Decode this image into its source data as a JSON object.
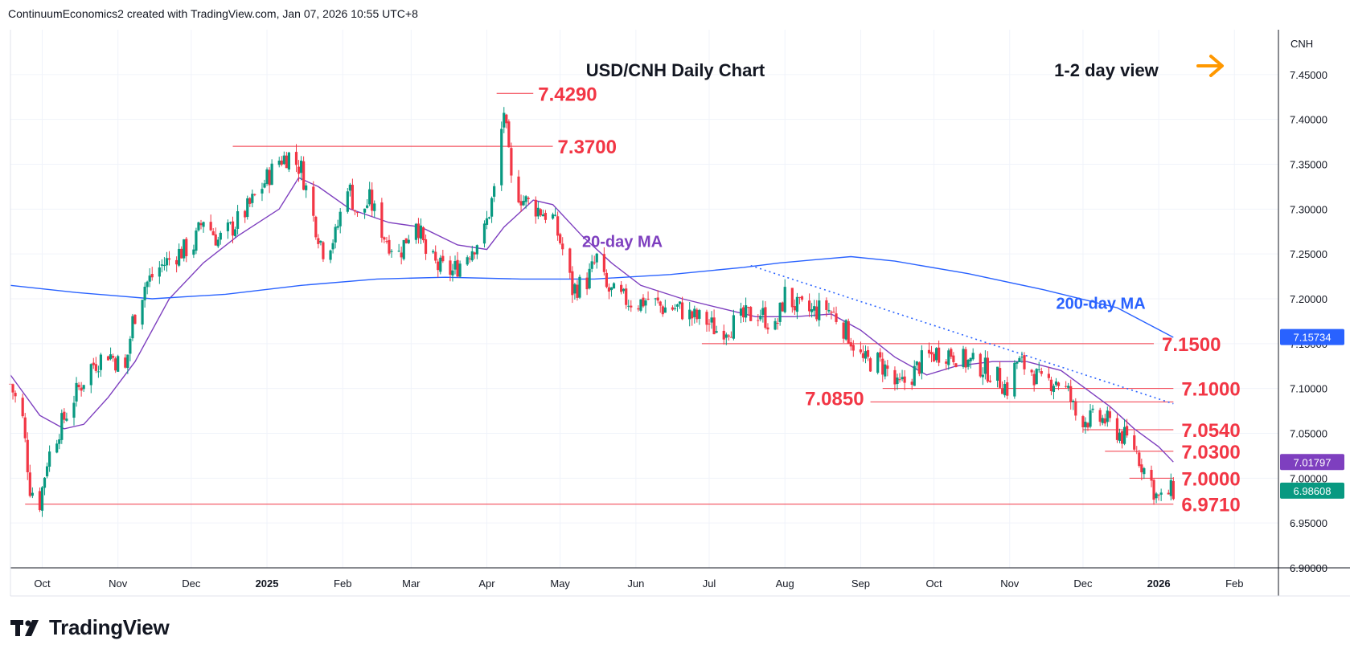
{
  "header": {
    "attribution": "ContinuumEconomics2 created with TradingView.com, Jan 07, 2026 10:55 UTC+8"
  },
  "footer": {
    "brand": "TradingView"
  },
  "chart_data": {
    "type": "candlestick",
    "title": "USD/CNH Daily Chart",
    "subtitle": "1-2 day view",
    "currency_label": "CNH",
    "ylim": [
      6.9,
      7.5
    ],
    "y_ticks": [
      "7.45000",
      "7.40000",
      "7.35000",
      "7.30000",
      "7.25000",
      "7.20000",
      "7.15000",
      "7.10000",
      "7.05000",
      "7.00000",
      "6.95000",
      "6.90000"
    ],
    "x_axis": {
      "start": "2024-09-18",
      "end": "2026-02-19",
      "ticks": [
        {
          "date": "2024-10-01",
          "label": "Oct",
          "bold": false
        },
        {
          "date": "2024-11-01",
          "label": "Nov",
          "bold": false
        },
        {
          "date": "2024-12-01",
          "label": "Dec",
          "bold": false
        },
        {
          "date": "2025-01-01",
          "label": "2025",
          "bold": true
        },
        {
          "date": "2025-02-01",
          "label": "Feb",
          "bold": false
        },
        {
          "date": "2025-03-01",
          "label": "Mar",
          "bold": false
        },
        {
          "date": "2025-04-01",
          "label": "Apr",
          "bold": false
        },
        {
          "date": "2025-05-01",
          "label": "May",
          "bold": false
        },
        {
          "date": "2025-06-01",
          "label": "Jun",
          "bold": false
        },
        {
          "date": "2025-07-01",
          "label": "Jul",
          "bold": false
        },
        {
          "date": "2025-08-01",
          "label": "Aug",
          "bold": false
        },
        {
          "date": "2025-09-01",
          "label": "Sep",
          "bold": false
        },
        {
          "date": "2025-10-01",
          "label": "Oct",
          "bold": false
        },
        {
          "date": "2025-11-01",
          "label": "Nov",
          "bold": false
        },
        {
          "date": "2025-12-01",
          "label": "Dec",
          "bold": false
        },
        {
          "date": "2026-01-01",
          "label": "2026",
          "bold": true
        },
        {
          "date": "2026-02-01",
          "label": "Feb",
          "bold": false
        }
      ]
    },
    "price_series": {
      "name": "USD/CNH",
      "up_color": "#089981",
      "down_color": "#f23645",
      "points": [
        [
          "2024-09-18",
          7.105
        ],
        [
          "2024-09-23",
          7.065
        ],
        [
          "2024-09-26",
          6.99
        ],
        [
          "2024-09-30",
          6.973
        ],
        [
          "2024-10-03",
          7.02
        ],
        [
          "2024-10-08",
          7.055
        ],
        [
          "2024-10-14",
          7.09
        ],
        [
          "2024-10-21",
          7.125
        ],
        [
          "2024-10-28",
          7.14
        ],
        [
          "2024-11-04",
          7.12
        ],
        [
          "2024-11-07",
          7.175
        ],
        [
          "2024-11-12",
          7.215
        ],
        [
          "2024-11-18",
          7.235
        ],
        [
          "2024-11-25",
          7.25
        ],
        [
          "2024-12-02",
          7.26
        ],
        [
          "2024-12-06",
          7.29
        ],
        [
          "2024-12-12",
          7.265
        ],
        [
          "2024-12-18",
          7.28
        ],
        [
          "2024-12-24",
          7.3
        ],
        [
          "2024-12-31",
          7.33
        ],
        [
          "2025-01-06",
          7.355
        ],
        [
          "2025-01-10",
          7.36
        ],
        [
          "2025-01-15",
          7.345
        ],
        [
          "2025-01-20",
          7.29
        ],
        [
          "2025-01-24",
          7.255
        ],
        [
          "2025-01-29",
          7.27
        ],
        [
          "2025-02-03",
          7.33
        ],
        [
          "2025-02-07",
          7.29
        ],
        [
          "2025-02-12",
          7.31
        ],
        [
          "2025-02-18",
          7.27
        ],
        [
          "2025-02-24",
          7.25
        ],
        [
          "2025-03-03",
          7.29
        ],
        [
          "2025-03-07",
          7.25
        ],
        [
          "2025-03-12",
          7.235
        ],
        [
          "2025-03-18",
          7.23
        ],
        [
          "2025-03-24",
          7.25
        ],
        [
          "2025-03-31",
          7.275
        ],
        [
          "2025-04-04",
          7.32
        ],
        [
          "2025-04-08",
          7.41
        ],
        [
          "2025-04-11",
          7.33
        ],
        [
          "2025-04-16",
          7.31
        ],
        [
          "2025-04-22",
          7.3
        ],
        [
          "2025-04-28",
          7.29
        ],
        [
          "2025-05-02",
          7.255
        ],
        [
          "2025-05-06",
          7.21
        ],
        [
          "2025-05-12",
          7.22
        ],
        [
          "2025-05-16",
          7.245
        ],
        [
          "2025-05-20",
          7.21
        ],
        [
          "2025-05-26",
          7.2
        ],
        [
          "2025-06-02",
          7.195
        ],
        [
          "2025-06-06",
          7.2
        ],
        [
          "2025-06-12",
          7.19
        ],
        [
          "2025-06-18",
          7.19
        ],
        [
          "2025-06-24",
          7.18
        ],
        [
          "2025-06-30",
          7.175
        ],
        [
          "2025-07-04",
          7.165
        ],
        [
          "2025-07-10",
          7.17
        ],
        [
          "2025-07-16",
          7.18
        ],
        [
          "2025-07-22",
          7.185
        ],
        [
          "2025-07-28",
          7.165
        ],
        [
          "2025-08-01",
          7.205
        ],
        [
          "2025-08-06",
          7.19
        ],
        [
          "2025-08-12",
          7.185
        ],
        [
          "2025-08-18",
          7.19
        ],
        [
          "2025-08-22",
          7.18
        ],
        [
          "2025-08-27",
          7.16
        ],
        [
          "2025-09-02",
          7.13
        ],
        [
          "2025-09-08",
          7.13
        ],
        [
          "2025-09-12",
          7.12
        ],
        [
          "2025-09-16",
          7.1
        ],
        [
          "2025-09-22",
          7.115
        ],
        [
          "2025-09-26",
          7.13
        ],
        [
          "2025-10-02",
          7.14
        ],
        [
          "2025-10-08",
          7.14
        ],
        [
          "2025-10-14",
          7.13
        ],
        [
          "2025-10-20",
          7.125
        ],
        [
          "2025-10-26",
          7.115
        ],
        [
          "2025-10-31",
          7.1
        ],
        [
          "2025-11-04",
          7.13
        ],
        [
          "2025-11-10",
          7.12
        ],
        [
          "2025-11-14",
          7.105
        ],
        [
          "2025-11-20",
          7.11
        ],
        [
          "2025-11-25",
          7.095
        ],
        [
          "2025-11-28",
          7.07
        ],
        [
          "2025-12-04",
          7.065
        ],
        [
          "2025-12-10",
          7.065
        ],
        [
          "2025-12-16",
          7.05
        ],
        [
          "2025-12-22",
          7.035
        ],
        [
          "2025-12-26",
          7.01
        ],
        [
          "2025-12-29",
          6.995
        ],
        [
          "2025-12-31",
          6.98
        ],
        [
          "2026-01-02",
          6.975
        ],
        [
          "2026-01-05",
          6.984
        ],
        [
          "2026-01-07",
          6.986
        ]
      ]
    },
    "moving_averages": [
      {
        "name": "20-day MA",
        "color": "#7e3fbf",
        "points": [
          [
            "2024-09-18",
            7.115
          ],
          [
            "2024-09-30",
            7.07
          ],
          [
            "2024-10-10",
            7.055
          ],
          [
            "2024-10-18",
            7.06
          ],
          [
            "2024-10-28",
            7.09
          ],
          [
            "2024-11-08",
            7.13
          ],
          [
            "2024-11-22",
            7.2
          ],
          [
            "2024-12-06",
            7.24
          ],
          [
            "2024-12-20",
            7.27
          ],
          [
            "2025-01-06",
            7.3
          ],
          [
            "2025-01-14",
            7.335
          ],
          [
            "2025-01-22",
            7.325
          ],
          [
            "2025-02-04",
            7.3
          ],
          [
            "2025-02-20",
            7.285
          ],
          [
            "2025-03-05",
            7.28
          ],
          [
            "2025-03-20",
            7.26
          ],
          [
            "2025-04-01",
            7.255
          ],
          [
            "2025-04-08",
            7.28
          ],
          [
            "2025-04-20",
            7.31
          ],
          [
            "2025-04-28",
            7.305
          ],
          [
            "2025-05-10",
            7.27
          ],
          [
            "2025-05-22",
            7.24
          ],
          [
            "2025-06-03",
            7.215
          ],
          [
            "2025-06-20",
            7.2
          ],
          [
            "2025-07-05",
            7.19
          ],
          [
            "2025-07-20",
            7.18
          ],
          [
            "2025-08-05",
            7.18
          ],
          [
            "2025-08-20",
            7.183
          ],
          [
            "2025-09-01",
            7.165
          ],
          [
            "2025-09-15",
            7.135
          ],
          [
            "2025-09-28",
            7.115
          ],
          [
            "2025-10-10",
            7.125
          ],
          [
            "2025-10-25",
            7.13
          ],
          [
            "2025-11-08",
            7.13
          ],
          [
            "2025-11-22",
            7.12
          ],
          [
            "2025-12-02",
            7.1
          ],
          [
            "2025-12-12",
            7.08
          ],
          [
            "2025-12-22",
            7.055
          ],
          [
            "2026-01-01",
            7.035
          ],
          [
            "2026-01-07",
            7.018
          ]
        ]
      },
      {
        "name": "200-day MA",
        "color": "#2962ff",
        "points": [
          [
            "2024-09-18",
            7.215
          ],
          [
            "2024-10-15",
            7.207
          ],
          [
            "2024-11-15",
            7.2
          ],
          [
            "2024-12-15",
            7.205
          ],
          [
            "2025-01-15",
            7.215
          ],
          [
            "2025-02-15",
            7.222
          ],
          [
            "2025-03-15",
            7.224
          ],
          [
            "2025-04-15",
            7.222
          ],
          [
            "2025-05-15",
            7.222
          ],
          [
            "2025-06-15",
            7.227
          ],
          [
            "2025-07-15",
            7.235
          ],
          [
            "2025-07-30",
            7.24
          ],
          [
            "2025-08-15",
            7.244
          ],
          [
            "2025-08-28",
            7.247
          ],
          [
            "2025-09-15",
            7.242
          ],
          [
            "2025-10-15",
            7.228
          ],
          [
            "2025-11-15",
            7.21
          ],
          [
            "2025-12-15",
            7.19
          ],
          [
            "2026-01-07",
            7.157
          ]
        ]
      }
    ],
    "levels": [
      {
        "label": "7.4290",
        "value": 7.429,
        "from": "2025-04-05",
        "to": "2025-04-20",
        "color": "#f23645"
      },
      {
        "label": "7.3700",
        "value": 7.37,
        "from": "2024-12-18",
        "to": "2025-04-28",
        "color": "#f23645"
      },
      {
        "label": "7.1500",
        "value": 7.15,
        "from": "2025-06-28",
        "to": "2025-12-30",
        "color": "#f23645"
      },
      {
        "label": "7.1000",
        "value": 7.1,
        "from": "2025-09-10",
        "to": "2026-01-07",
        "color": "#f23645"
      },
      {
        "label": "7.0850",
        "value": 7.085,
        "from": "2025-09-05",
        "to": "2026-01-07",
        "color": "#f23645"
      },
      {
        "label": "7.0540",
        "value": 7.054,
        "from": "2025-12-01",
        "to": "2026-01-07",
        "color": "#f23645"
      },
      {
        "label": "7.0300",
        "value": 7.03,
        "from": "2025-12-10",
        "to": "2026-01-07",
        "color": "#f23645"
      },
      {
        "label": "7.0000",
        "value": 7.0,
        "from": "2025-12-20",
        "to": "2026-01-07",
        "color": "#f23645"
      },
      {
        "label": "6.9710",
        "value": 6.971,
        "from": "2024-09-24",
        "to": "2026-01-07",
        "color": "#f23645"
      }
    ],
    "trendline": {
      "from": [
        "2025-07-18",
        7.237
      ],
      "to": [
        "2026-01-07",
        7.083
      ],
      "color": "#2962ff",
      "style": "dotted"
    },
    "price_badges": [
      {
        "label": "7.15734",
        "value": 7.15734,
        "color": "#2962ff"
      },
      {
        "label": "7.01797",
        "value": 7.01797,
        "color": "#7e3fbf"
      },
      {
        "label": "6.98608",
        "value": 6.98608,
        "color": "#089981"
      }
    ],
    "grid": true,
    "colors": {
      "grid": "#f0f3fa",
      "axis_text": "#131722",
      "level_text": "#f23645",
      "arrow": "#ff9800"
    }
  }
}
